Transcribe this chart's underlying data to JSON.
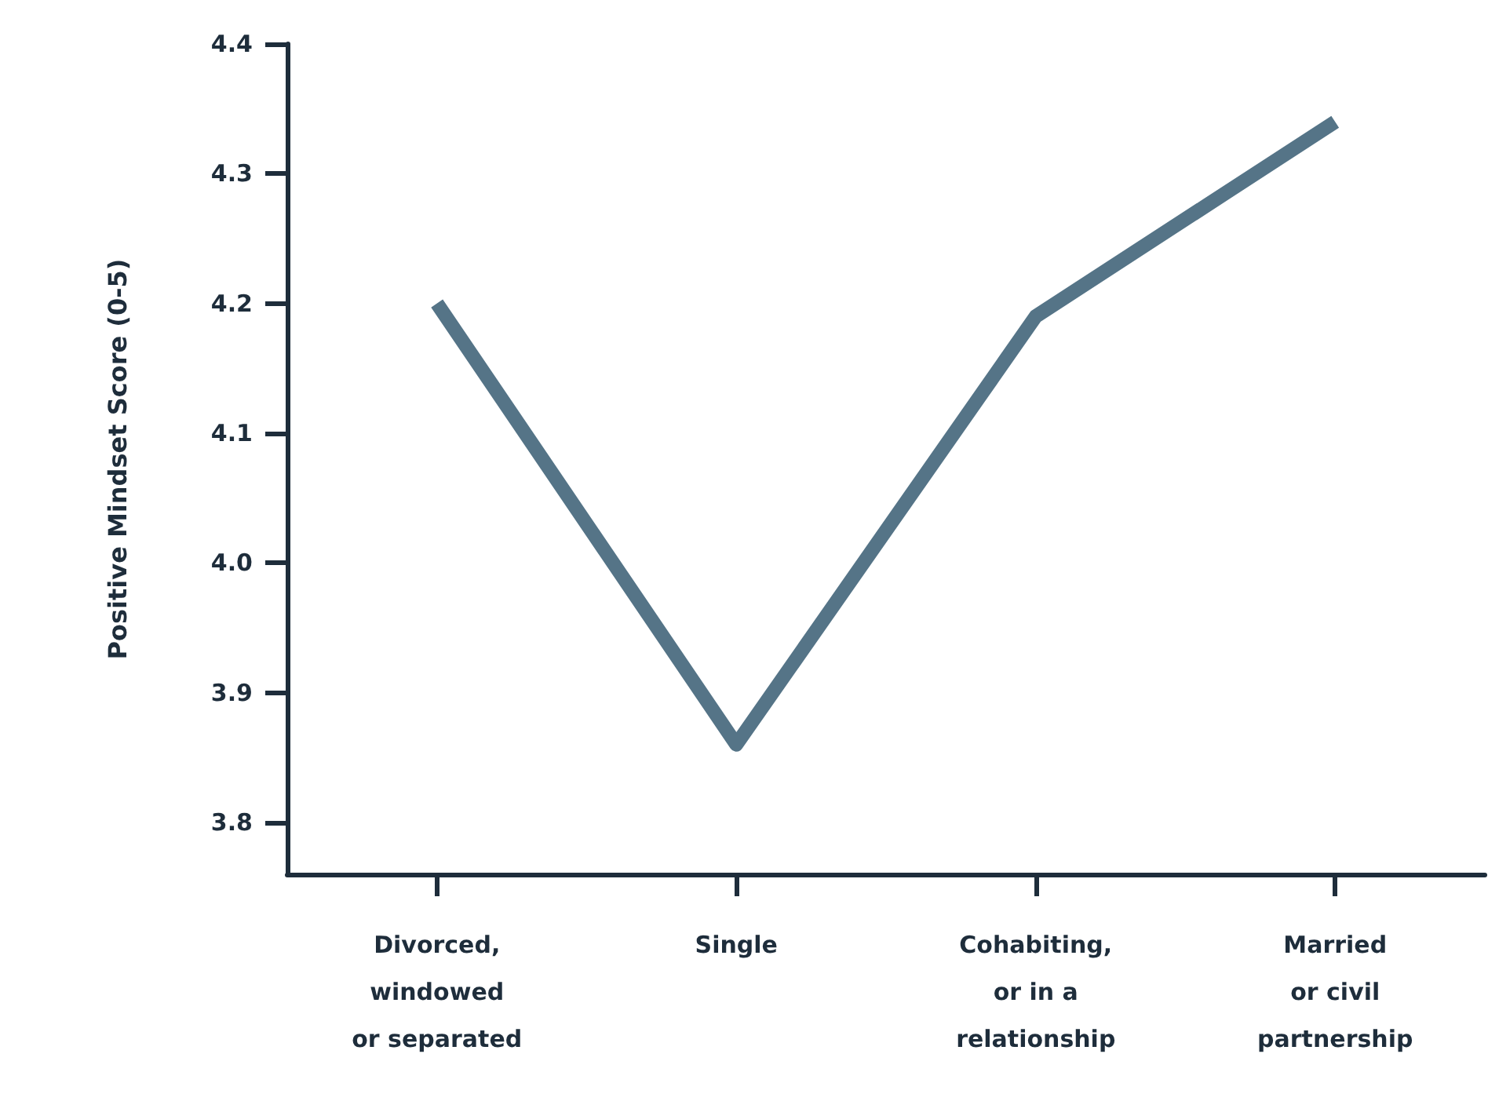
{
  "chart_data": {
    "type": "line",
    "ylabel": "Positive Mindset Score (0-5)",
    "categories": [
      "Divorced,\nwindowed\nor separated",
      "Single",
      "Cohabiting,\nor in a\nrelationship",
      "Married\nor civil\npartnership"
    ],
    "series": [
      {
        "color": "#557487",
        "values": [
          4.2,
          3.86,
          4.19,
          4.34
        ]
      }
    ],
    "ylim": [
      3.76,
      4.4
    ],
    "yticks": [
      {
        "value": 3.8,
        "label": "3.8"
      },
      {
        "value": 3.9,
        "label": "3.9"
      },
      {
        "value": 4,
        "label": "4.0"
      },
      {
        "value": 4.1,
        "label": "4.1"
      },
      {
        "value": 4.2,
        "label": "4.2"
      },
      {
        "value": 4.3,
        "label": "4.3"
      },
      {
        "value": 4.4,
        "label": "4.4"
      }
    ],
    "grid": false,
    "marker": "none",
    "line_style": "solid"
  }
}
